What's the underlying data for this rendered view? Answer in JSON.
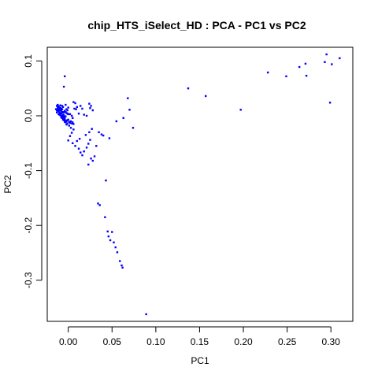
{
  "chart_data": {
    "type": "scatter",
    "title": "chip_HTS_iSelect_HD : PCA - PC1 vs PC2",
    "xlabel": "PC1",
    "ylabel": "PC2",
    "xlim": [
      -0.024,
      0.325
    ],
    "ylim": [
      -0.375,
      0.125
    ],
    "x_ticks": [
      0.0,
      0.05,
      0.1,
      0.15,
      0.2,
      0.25,
      0.3
    ],
    "x_tick_labels": [
      "0.00",
      "0.05",
      "0.10",
      "0.15",
      "0.20",
      "0.25",
      "0.30"
    ],
    "y_ticks": [
      -0.3,
      -0.2,
      -0.1,
      0.0,
      0.1
    ],
    "y_tick_labels": [
      "-0.3",
      "-0.2",
      "-0.1",
      "0.0",
      "0.1"
    ],
    "grid": false,
    "legend": "none",
    "marker_color": "#0000ff",
    "marker": "small filled square",
    "series": [
      {
        "points": [
          [
            -0.013,
            0.018
          ],
          [
            -0.012,
            0.016
          ],
          [
            -0.011,
            0.017
          ],
          [
            -0.01,
            0.015
          ],
          [
            -0.009,
            0.014
          ],
          [
            -0.012,
            0.013
          ],
          [
            -0.011,
            0.012
          ],
          [
            -0.01,
            0.011
          ],
          [
            -0.008,
            0.013
          ],
          [
            -0.007,
            0.012
          ],
          [
            -0.013,
            0.01
          ],
          [
            -0.012,
            0.009
          ],
          [
            -0.011,
            0.008
          ],
          [
            -0.009,
            0.01
          ],
          [
            -0.008,
            0.009
          ],
          [
            -0.01,
            0.006
          ],
          [
            -0.009,
            0.005
          ],
          [
            -0.008,
            0.004
          ],
          [
            -0.007,
            0.006
          ],
          [
            -0.006,
            0.007
          ],
          [
            -0.011,
            0.003
          ],
          [
            -0.01,
            0.002
          ],
          [
            -0.009,
            0.001
          ],
          [
            -0.008,
            0.0
          ],
          [
            -0.007,
            -0.001
          ],
          [
            -0.006,
            0.002
          ],
          [
            -0.005,
            0.001
          ],
          [
            -0.008,
            -0.003
          ],
          [
            -0.007,
            -0.004
          ],
          [
            -0.006,
            -0.005
          ],
          [
            -0.005,
            -0.002
          ],
          [
            -0.004,
            -0.003
          ],
          [
            -0.003,
            -0.001
          ],
          [
            -0.006,
            -0.007
          ],
          [
            -0.005,
            -0.008
          ],
          [
            -0.004,
            -0.006
          ],
          [
            -0.003,
            -0.009
          ],
          [
            -0.002,
            -0.01
          ],
          [
            -0.001,
            -0.008
          ],
          [
            0.0,
            -0.007
          ],
          [
            -0.004,
            -0.011
          ],
          [
            -0.003,
            -0.012
          ],
          [
            0.001,
            -0.011
          ],
          [
            0.002,
            -0.013
          ],
          [
            0.003,
            -0.01
          ],
          [
            0.004,
            -0.014
          ],
          [
            0.005,
            -0.012
          ],
          [
            0.006,
            -0.015
          ],
          [
            -0.002,
            -0.016
          ],
          [
            -0.001,
            -0.014
          ],
          [
            -0.005,
            0.006
          ],
          [
            -0.004,
            0.009
          ],
          [
            -0.003,
            0.007
          ],
          [
            -0.002,
            0.005
          ],
          [
            -0.001,
            0.004
          ],
          [
            0.0,
            0.003
          ],
          [
            -0.002,
            0.012
          ],
          [
            -0.001,
            0.01
          ],
          [
            -0.003,
            0.02
          ],
          [
            -0.006,
            0.016
          ],
          [
            -0.007,
            0.018
          ],
          [
            -0.009,
            0.019
          ],
          [
            -0.012,
            0.02
          ],
          [
            -0.013,
            0.006
          ],
          [
            -0.014,
            0.012
          ],
          [
            -0.005,
            0.053
          ],
          [
            -0.004,
            0.072
          ],
          [
            0.0,
            0.015
          ],
          [
            0.002,
            0.003
          ],
          [
            0.004,
            0.0
          ],
          [
            0.005,
            -0.004
          ],
          [
            0.006,
            0.025
          ],
          [
            0.008,
            0.023
          ],
          [
            0.007,
            0.013
          ],
          [
            0.009,
            0.012
          ],
          [
            0.01,
            0.016
          ],
          [
            0.012,
            0.004
          ],
          [
            0.014,
            0.018
          ],
          [
            0.016,
            0.013
          ],
          [
            0.018,
            0.002
          ],
          [
            0.021,
            0.0
          ],
          [
            0.024,
            0.022
          ],
          [
            0.026,
            0.018
          ],
          [
            0.028,
            0.01
          ],
          [
            0.025,
            0.014
          ],
          [
            0.001,
            -0.018
          ],
          [
            0.003,
            -0.022
          ],
          [
            0.006,
            -0.025
          ],
          [
            0.004,
            -0.031
          ],
          [
            0.002,
            -0.037
          ],
          [
            0.0,
            -0.045
          ],
          [
            0.005,
            -0.05
          ],
          [
            0.01,
            -0.046
          ],
          [
            0.013,
            -0.042
          ],
          [
            0.008,
            -0.055
          ],
          [
            0.012,
            -0.06
          ],
          [
            0.014,
            -0.067
          ],
          [
            0.016,
            -0.072
          ],
          [
            0.018,
            -0.065
          ],
          [
            0.021,
            -0.058
          ],
          [
            0.023,
            -0.051
          ],
          [
            0.025,
            -0.044
          ],
          [
            0.02,
            -0.035
          ],
          [
            0.024,
            -0.03
          ],
          [
            0.027,
            -0.024
          ],
          [
            0.026,
            -0.078
          ],
          [
            0.023,
            -0.089
          ],
          [
            0.028,
            -0.082
          ],
          [
            0.03,
            -0.074
          ],
          [
            0.032,
            -0.055
          ],
          [
            0.035,
            -0.03
          ],
          [
            0.038,
            -0.034
          ],
          [
            0.04,
            -0.036
          ],
          [
            0.047,
            -0.041
          ],
          [
            0.055,
            -0.01
          ],
          [
            0.043,
            -0.118
          ],
          [
            0.034,
            -0.16
          ],
          [
            0.036,
            -0.163
          ],
          [
            0.042,
            -0.185
          ],
          [
            0.045,
            -0.211
          ],
          [
            0.046,
            -0.22
          ],
          [
            0.048,
            -0.227
          ],
          [
            0.05,
            -0.212
          ],
          [
            0.052,
            -0.231
          ],
          [
            0.054,
            -0.24
          ],
          [
            0.056,
            -0.249
          ],
          [
            0.059,
            -0.265
          ],
          [
            0.061,
            -0.273
          ],
          [
            0.062,
            -0.277
          ],
          [
            0.089,
            -0.362
          ],
          [
            0.063,
            -0.004
          ],
          [
            0.068,
            0.032
          ],
          [
            0.07,
            0.011
          ],
          [
            0.074,
            -0.022
          ],
          [
            0.137,
            0.05
          ],
          [
            0.157,
            0.036
          ],
          [
            0.197,
            0.011
          ],
          [
            0.228,
            0.079
          ],
          [
            0.249,
            0.072
          ],
          [
            0.264,
            0.089
          ],
          [
            0.271,
            0.095
          ],
          [
            0.272,
            0.073
          ],
          [
            0.293,
            0.098
          ],
          [
            0.295,
            0.112
          ],
          [
            0.299,
            0.024
          ],
          [
            0.301,
            0.094
          ],
          [
            0.31,
            0.105
          ]
        ]
      }
    ]
  }
}
